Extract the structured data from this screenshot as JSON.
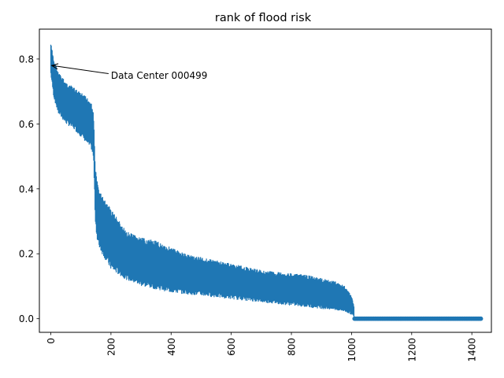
{
  "chart_data": {
    "type": "line",
    "title": "rank of flood risk",
    "xlabel": "",
    "ylabel": "",
    "xlim": [
      -38,
      1465
    ],
    "ylim": [
      -0.042,
      0.892
    ],
    "xticks": [
      0,
      200,
      400,
      600,
      800,
      1000,
      1200,
      1400
    ],
    "yticks": [
      0.0,
      0.2,
      0.4,
      0.6,
      0.8
    ],
    "ytick_labels": [
      "0.0",
      "0.2",
      "0.4",
      "0.6",
      "0.8"
    ],
    "xtick_rotation": 90,
    "grid": false,
    "legend": "none",
    "color": "#1f77b4",
    "series": [
      {
        "name": "",
        "band_envelope": {
          "x": [
            0,
            10,
            25,
            50,
            80,
            110,
            135,
            142,
            148,
            155,
            160,
            170,
            200,
            250,
            300,
            350,
            400,
            450,
            500,
            550,
            600,
            650,
            700,
            750,
            800,
            850,
            900,
            950,
            980,
            1000,
            1008
          ],
          "upper": [
            0.85,
            0.8,
            0.76,
            0.73,
            0.71,
            0.69,
            0.67,
            0.64,
            0.47,
            0.42,
            0.4,
            0.38,
            0.34,
            0.27,
            0.25,
            0.24,
            0.22,
            0.2,
            0.19,
            0.18,
            0.17,
            0.16,
            0.15,
            0.145,
            0.14,
            0.135,
            0.125,
            0.115,
            0.1,
            0.07,
            0.04
          ],
          "lower": [
            0.75,
            0.68,
            0.63,
            0.6,
            0.58,
            0.55,
            0.52,
            0.49,
            0.3,
            0.23,
            0.22,
            0.2,
            0.15,
            0.12,
            0.1,
            0.09,
            0.08,
            0.075,
            0.07,
            0.065,
            0.06,
            0.055,
            0.05,
            0.045,
            0.04,
            0.035,
            0.03,
            0.025,
            0.02,
            0.012,
            0.005
          ]
        }
      },
      {
        "name": "",
        "zero_run": {
          "x_start": 1010,
          "x_end": 1430,
          "y": 0.0
        }
      }
    ],
    "annotations": [
      {
        "text": "Data Center 000499",
        "target": [
          3,
          0.78
        ],
        "text_pos": [
          200,
          0.75
        ]
      }
    ]
  }
}
